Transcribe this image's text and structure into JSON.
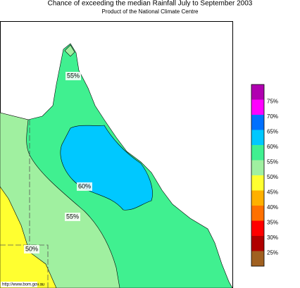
{
  "header": {
    "title": "Chance of exceeding the median Rainfall July to September 2003",
    "subtitle": "Product of the National Climate Centre"
  },
  "map_labels": [
    "55%",
    "60%",
    "55%",
    "50%"
  ],
  "legend": [
    {
      "color": "#b000b0"
    },
    {
      "label": "75%",
      "color": "#ff00ff"
    },
    {
      "label": "70%",
      "color": "#0070ff"
    },
    {
      "label": "65%",
      "color": "#00c8ff"
    },
    {
      "label": "60%",
      "color": "#40f090"
    },
    {
      "label": "55%",
      "color": "#a0f0a0"
    },
    {
      "label": "50%",
      "color": "#ffff30"
    },
    {
      "label": "45%",
      "color": "#ffb000"
    },
    {
      "label": "40%",
      "color": "#ff7000"
    },
    {
      "label": "35%",
      "color": "#ff0000"
    },
    {
      "label": "30%",
      "color": "#b00000"
    },
    {
      "label": "25%",
      "color": "#a06020"
    }
  ],
  "footer": {
    "url": "http://www.bom.gov.au"
  }
}
